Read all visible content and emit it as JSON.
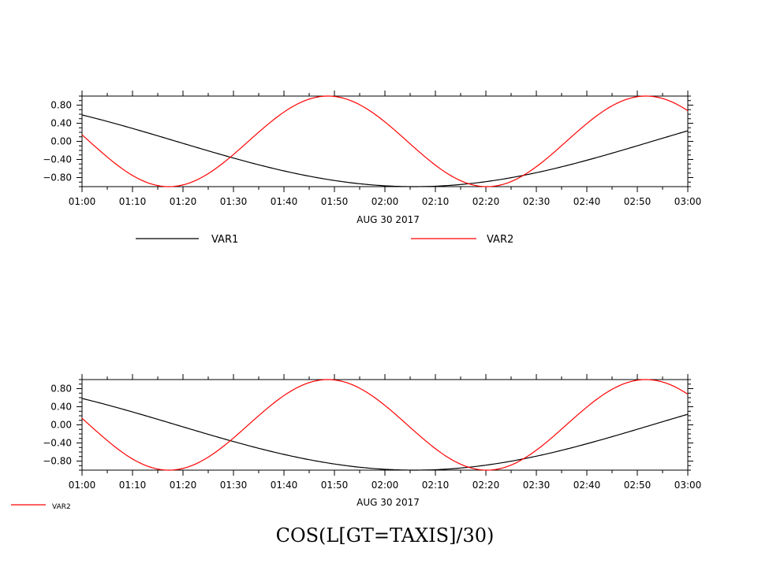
{
  "footer_title": "COS(L[GT=TAXIS]/30)",
  "chart_data": [
    {
      "type": "line",
      "xlabel": "AUG 30 2017",
      "x_tick_labels": [
        "01:00",
        "01:10",
        "01:20",
        "01:30",
        "01:40",
        "01:50",
        "02:00",
        "02:10",
        "02:20",
        "02:30",
        "02:40",
        "02:50",
        "03:00"
      ],
      "y_tick_labels": [
        "0.80",
        "0.40",
        "0.00",
        "-0.40",
        "-0.80"
      ],
      "y_tick_values": [
        0.8,
        0.4,
        0.0,
        -0.4,
        -0.8
      ],
      "xlim_minutes": [
        0,
        120
      ],
      "ylim": [
        -1.0,
        1.0
      ],
      "series": [
        {
          "name": "VAR1",
          "color": "#000000",
          "formula": "cos(L/30)",
          "phase_minutes": 65.8,
          "period_minutes": 188.5,
          "amplitude": 1.0
        },
        {
          "name": "VAR2",
          "color": "#ff0000",
          "formula": "cos",
          "phase_minutes": 17.2,
          "period_minutes": 63.0,
          "amplitude": 1.0
        }
      ],
      "legend": [
        {
          "label": "VAR1",
          "color": "#000000"
        },
        {
          "label": "VAR2",
          "color": "#ff0000"
        }
      ],
      "legend_placement": "below"
    },
    {
      "type": "line",
      "xlabel": "AUG 30 2017",
      "x_tick_labels": [
        "01:00",
        "01:10",
        "01:20",
        "01:30",
        "01:40",
        "01:50",
        "02:00",
        "02:10",
        "02:20",
        "02:30",
        "02:40",
        "02:50",
        "03:00"
      ],
      "y_tick_labels": [
        "0.80",
        "0.40",
        "0.00",
        "-0.40",
        "-0.80"
      ],
      "y_tick_values": [
        0.8,
        0.4,
        0.0,
        -0.4,
        -0.8
      ],
      "xlim_minutes": [
        0,
        120
      ],
      "ylim": [
        -1.0,
        1.0
      ],
      "series": [
        {
          "name": "VAR1",
          "color": "#000000",
          "formula": "cos(L/30)",
          "phase_minutes": 65.8,
          "period_minutes": 188.5,
          "amplitude": 1.0
        },
        {
          "name": "VAR2",
          "color": "#ff0000",
          "formula": "cos",
          "phase_minutes": 17.2,
          "period_minutes": 63.0,
          "amplitude": 1.0
        }
      ],
      "legend": [
        {
          "label": "VAR2",
          "color": "#ff0000"
        }
      ],
      "legend_placement": "bottom-left"
    }
  ]
}
